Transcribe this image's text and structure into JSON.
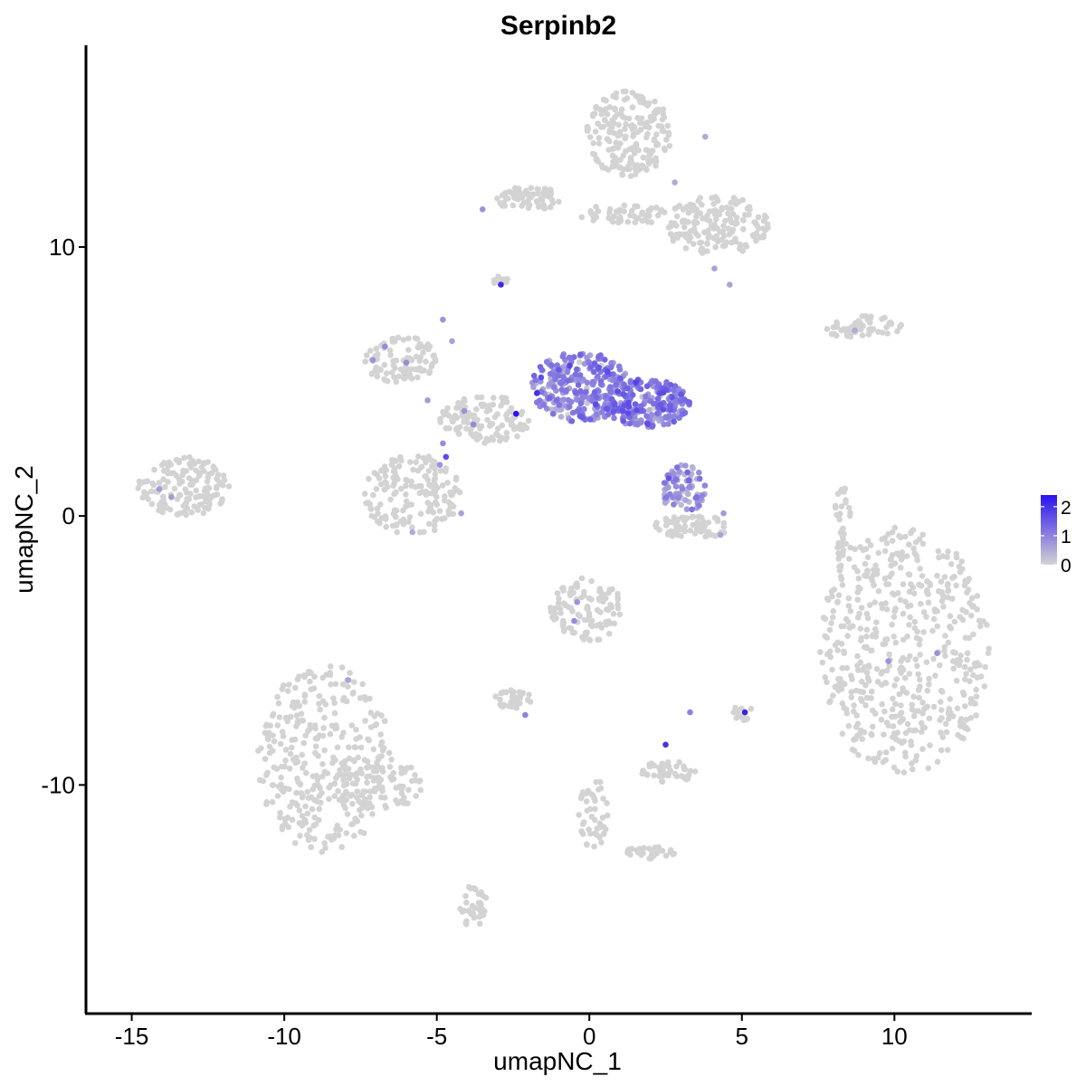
{
  "chart_data": {
    "type": "scatter",
    "title": "Serpinb2",
    "xlabel": "umapNC_1",
    "ylabel": "umapNC_2",
    "xlim": [
      -16.5,
      14.5
    ],
    "ylim": [
      -18.5,
      17.5
    ],
    "x_ticks": [
      {
        "value": -15,
        "label": "-15"
      },
      {
        "value": -10,
        "label": "-10"
      },
      {
        "value": -5,
        "label": "-5"
      },
      {
        "value": 0,
        "label": "0"
      },
      {
        "value": 5,
        "label": "5"
      },
      {
        "value": 10,
        "label": "10"
      }
    ],
    "y_ticks": [
      {
        "value": 10,
        "label": "10"
      },
      {
        "value": 0,
        "label": "0"
      },
      {
        "value": -10,
        "label": "-10"
      }
    ],
    "grid": false,
    "legend_position": "right",
    "color_scale": {
      "low_color": "#d3d3d3",
      "high_color": "#2a12f0",
      "min": 0,
      "max": 2.4,
      "ticks": [
        {
          "value": 2,
          "label": "2"
        },
        {
          "value": 1,
          "label": "1"
        },
        {
          "value": 0,
          "label": "0"
        }
      ]
    },
    "clusters": [
      {
        "x": 10.3,
        "y": -5.0,
        "rx": 2.8,
        "ry": 4.6,
        "n": 520,
        "expr": 0
      },
      {
        "x": -8.7,
        "y": -9.0,
        "rx": 2.2,
        "ry": 3.5,
        "n": 340,
        "expr": 0
      },
      {
        "x": -7.0,
        "y": -10.0,
        "rx": 1.6,
        "ry": 1.0,
        "n": 80,
        "expr": 0
      },
      {
        "x": -3.8,
        "y": -14.5,
        "rx": 0.45,
        "ry": 0.8,
        "n": 40,
        "expr": 0
      },
      {
        "x": 1.3,
        "y": 14.2,
        "rx": 1.4,
        "ry": 1.6,
        "n": 200,
        "expr": 0
      },
      {
        "x": 4.2,
        "y": 10.8,
        "rx": 1.7,
        "ry": 1.1,
        "n": 170,
        "expr": 0
      },
      {
        "x": -2.0,
        "y": 11.8,
        "rx": 1.1,
        "ry": 0.45,
        "n": 70,
        "expr": 0
      },
      {
        "x": 1.2,
        "y": 11.2,
        "rx": 1.5,
        "ry": 0.4,
        "n": 50,
        "expr": 0
      },
      {
        "x": 9.0,
        "y": 7.0,
        "rx": 1.3,
        "ry": 0.45,
        "n": 55,
        "expr": 0
      },
      {
        "x": -13.3,
        "y": 1.1,
        "rx": 1.5,
        "ry": 1.1,
        "n": 150,
        "expr": 0
      },
      {
        "x": -6.2,
        "y": 5.8,
        "rx": 1.2,
        "ry": 0.9,
        "n": 95,
        "expr": 0
      },
      {
        "x": -5.8,
        "y": 0.8,
        "rx": 1.6,
        "ry": 1.5,
        "n": 160,
        "expr": 0
      },
      {
        "x": -3.4,
        "y": 3.6,
        "rx": 1.5,
        "ry": 0.9,
        "n": 120,
        "expr": 0
      },
      {
        "x": -0.3,
        "y": 4.8,
        "rx": 1.6,
        "ry": 1.3,
        "n": 280,
        "expr": 0.9
      },
      {
        "x": 1.9,
        "y": 4.2,
        "rx": 1.4,
        "ry": 0.9,
        "n": 210,
        "expr": 1.0
      },
      {
        "x": 3.1,
        "y": 1.0,
        "rx": 0.75,
        "ry": 0.9,
        "n": 80,
        "expr": 0.7
      },
      {
        "x": 3.3,
        "y": -0.4,
        "rx": 1.3,
        "ry": 0.45,
        "n": 70,
        "expr": 0
      },
      {
        "x": -0.1,
        "y": -3.5,
        "rx": 1.2,
        "ry": 1.2,
        "n": 110,
        "expr": 0
      },
      {
        "x": -2.5,
        "y": -6.8,
        "rx": 0.6,
        "ry": 0.35,
        "n": 35,
        "expr": 0
      },
      {
        "x": 2.6,
        "y": -9.5,
        "rx": 0.9,
        "ry": 0.4,
        "n": 45,
        "expr": 0
      },
      {
        "x": 0.1,
        "y": -11.0,
        "rx": 0.5,
        "ry": 1.4,
        "n": 45,
        "expr": 0
      },
      {
        "x": 2.0,
        "y": -12.5,
        "rx": 0.8,
        "ry": 0.3,
        "n": 30,
        "expr": 0
      },
      {
        "x": 8.3,
        "y": -0.5,
        "rx": 0.3,
        "ry": 1.6,
        "n": 40,
        "expr": 0
      },
      {
        "x": 5.0,
        "y": -7.3,
        "rx": 0.35,
        "ry": 0.3,
        "n": 15,
        "expr": 0
      },
      {
        "x": -2.9,
        "y": 8.7,
        "rx": 0.25,
        "ry": 0.25,
        "n": 10,
        "expr": 0
      }
    ],
    "highlight_points": [
      {
        "x": -2.4,
        "y": 3.8,
        "value": 2.4
      },
      {
        "x": -2.9,
        "y": 8.6,
        "value": 2.1
      },
      {
        "x": 5.1,
        "y": -7.3,
        "value": 2.2
      },
      {
        "x": 2.5,
        "y": -8.5,
        "value": 2.0
      },
      {
        "x": -4.7,
        "y": 2.2,
        "value": 1.7
      },
      {
        "x": 2.6,
        "y": 1.4,
        "value": 1.6
      },
      {
        "x": -2.1,
        "y": -7.4,
        "value": 1.0
      },
      {
        "x": 3.3,
        "y": -7.3,
        "value": 1.0
      },
      {
        "x": 11.4,
        "y": -5.1,
        "value": 0.8
      },
      {
        "x": 9.8,
        "y": -5.4,
        "value": 0.8
      },
      {
        "x": -0.5,
        "y": -3.9,
        "value": 0.9
      },
      {
        "x": -0.4,
        "y": -3.2,
        "value": 0.8
      },
      {
        "x": -7.9,
        "y": -6.1,
        "value": 0.6
      },
      {
        "x": -14.1,
        "y": 1.0,
        "value": 0.7
      },
      {
        "x": -13.7,
        "y": 0.7,
        "value": 0.7
      },
      {
        "x": 2.8,
        "y": 12.4,
        "value": 0.5
      },
      {
        "x": 3.8,
        "y": 14.1,
        "value": 0.5
      },
      {
        "x": 4.1,
        "y": 9.2,
        "value": 0.6
      },
      {
        "x": 4.6,
        "y": 8.6,
        "value": 0.6
      },
      {
        "x": -3.5,
        "y": 11.4,
        "value": 0.8
      },
      {
        "x": 8.7,
        "y": 6.9,
        "value": 0.5
      },
      {
        "x": -4.8,
        "y": 7.3,
        "value": 0.8
      },
      {
        "x": -4.5,
        "y": 6.5,
        "value": 0.6
      },
      {
        "x": -6.7,
        "y": 6.3,
        "value": 0.9
      },
      {
        "x": -7.1,
        "y": 5.8,
        "value": 0.8
      },
      {
        "x": -6.0,
        "y": 5.7,
        "value": 0.9
      },
      {
        "x": -5.3,
        "y": 4.3,
        "value": 0.7
      },
      {
        "x": -4.1,
        "y": 3.9,
        "value": 0.8
      },
      {
        "x": -3.8,
        "y": 3.4,
        "value": 0.9
      },
      {
        "x": -4.8,
        "y": 2.7,
        "value": 0.9
      },
      {
        "x": -4.9,
        "y": 1.9,
        "value": 0.8
      },
      {
        "x": -4.2,
        "y": 0.1,
        "value": 0.6
      },
      {
        "x": -5.8,
        "y": -0.6,
        "value": 0.5
      },
      {
        "x": 4.3,
        "y": -0.7,
        "value": 0.6
      },
      {
        "x": 4.4,
        "y": 0.1,
        "value": 0.7
      }
    ]
  }
}
